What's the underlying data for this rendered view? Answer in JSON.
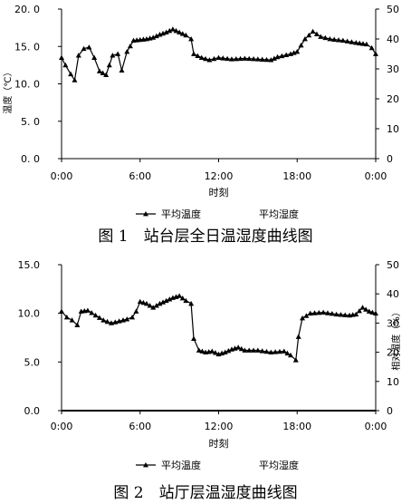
{
  "figures": [
    {
      "caption": "图 1　站台层全日温湿度曲线图"
    },
    {
      "caption": "图 2　站厅层温湿度曲线图"
    }
  ],
  "chart_data": [
    {
      "type": "line",
      "x_tick_labels": [
        "0:00",
        "6:00",
        "12:00",
        "18:00",
        "0:00"
      ],
      "xlabel": "时刻",
      "ylabel": "温度（℃）",
      "y_left_tick_labels": [
        "0. 0",
        "5. 0",
        "10. 0",
        "15. 0",
        "20. 0"
      ],
      "y_right_tick_labels": [
        "0",
        "10",
        "20",
        "30",
        "40",
        "50"
      ],
      "ylim_left": [
        0,
        20
      ],
      "ylim_right": [
        0,
        50
      ],
      "xlim_hours": [
        0,
        24
      ],
      "legend": [
        "平均温度",
        "平均湿度"
      ],
      "legend_position": "bottom",
      "grid": false,
      "series": [
        {
          "name": "平均温度",
          "marker": "triangle",
          "points": [
            [
              0.0,
              13.5
            ],
            [
              0.3,
              12.5
            ],
            [
              0.7,
              11.3
            ],
            [
              1.0,
              10.5
            ],
            [
              1.3,
              13.8
            ],
            [
              1.7,
              14.7
            ],
            [
              2.1,
              14.9
            ],
            [
              2.5,
              13.5
            ],
            [
              2.9,
              11.7
            ],
            [
              3.4,
              11.2
            ],
            [
              3.9,
              13.8
            ],
            [
              4.3,
              14.0
            ],
            [
              4.6,
              11.8
            ],
            [
              5.0,
              14.3
            ],
            [
              5.5,
              15.8
            ],
            [
              6.0,
              15.9
            ],
            [
              6.5,
              16.0
            ],
            [
              7.0,
              16.2
            ],
            [
              7.5,
              16.6
            ],
            [
              8.0,
              16.9
            ],
            [
              8.5,
              17.3
            ],
            [
              9.0,
              16.9
            ],
            [
              9.5,
              16.5
            ],
            [
              9.9,
              16.0
            ],
            [
              10.1,
              14.0
            ],
            [
              10.7,
              13.5
            ],
            [
              11.3,
              13.2
            ],
            [
              12.0,
              13.5
            ],
            [
              13.0,
              13.3
            ],
            [
              14.0,
              13.4
            ],
            [
              15.0,
              13.3
            ],
            [
              16.0,
              13.2
            ],
            [
              16.5,
              13.6
            ],
            [
              17.5,
              14.0
            ],
            [
              18.0,
              14.3
            ],
            [
              18.6,
              16.0
            ],
            [
              19.2,
              17.0
            ],
            [
              19.8,
              16.3
            ],
            [
              20.5,
              16.0
            ],
            [
              21.5,
              15.8
            ],
            [
              22.5,
              15.5
            ],
            [
              23.3,
              15.3
            ],
            [
              23.7,
              14.8
            ],
            [
              24.0,
              14.0
            ]
          ]
        },
        {
          "name": "平均湿度",
          "marker": "none",
          "points": []
        }
      ]
    },
    {
      "type": "line",
      "x_tick_labels": [
        "0:00",
        "6:00",
        "12:00",
        "18:00",
        "0:00"
      ],
      "xlabel": "时刻",
      "ylabel": "相对湿度（%）",
      "y_left_tick_labels": [
        "0.0",
        "5.0",
        "10.0",
        "15.0"
      ],
      "y_right_tick_labels": [
        "0",
        "10",
        "20",
        "30",
        "40",
        "50"
      ],
      "ylim_left": [
        0,
        15
      ],
      "ylim_right": [
        0,
        50
      ],
      "xlim_hours": [
        0,
        24
      ],
      "legend": [
        "平均温度",
        "平均湿度"
      ],
      "legend_position": "bottom",
      "grid": false,
      "series": [
        {
          "name": "平均温度",
          "marker": "triangle",
          "points": [
            [
              0.0,
              10.2
            ],
            [
              0.4,
              9.6
            ],
            [
              0.8,
              9.3
            ],
            [
              1.2,
              8.8
            ],
            [
              1.5,
              10.2
            ],
            [
              2.0,
              10.3
            ],
            [
              2.6,
              9.8
            ],
            [
              3.2,
              9.3
            ],
            [
              3.8,
              9.0
            ],
            [
              4.4,
              9.2
            ],
            [
              5.0,
              9.4
            ],
            [
              5.4,
              9.6
            ],
            [
              5.7,
              10.2
            ],
            [
              6.0,
              11.2
            ],
            [
              6.5,
              11.0
            ],
            [
              7.0,
              10.6
            ],
            [
              7.5,
              11.0
            ],
            [
              8.0,
              11.3
            ],
            [
              8.5,
              11.6
            ],
            [
              9.0,
              11.8
            ],
            [
              9.5,
              11.3
            ],
            [
              9.9,
              11.0
            ],
            [
              10.1,
              7.4
            ],
            [
              10.5,
              6.2
            ],
            [
              11.0,
              6.0
            ],
            [
              11.5,
              6.1
            ],
            [
              12.0,
              5.8
            ],
            [
              12.5,
              6.0
            ],
            [
              13.0,
              6.3
            ],
            [
              13.5,
              6.5
            ],
            [
              14.0,
              6.2
            ],
            [
              15.0,
              6.2
            ],
            [
              16.0,
              6.0
            ],
            [
              17.0,
              6.1
            ],
            [
              17.5,
              5.7
            ],
            [
              17.9,
              5.2
            ],
            [
              18.1,
              7.6
            ],
            [
              18.4,
              9.5
            ],
            [
              19.0,
              10.0
            ],
            [
              20.0,
              10.1
            ],
            [
              21.0,
              9.9
            ],
            [
              22.0,
              9.8
            ],
            [
              22.5,
              9.9
            ],
            [
              23.0,
              10.6
            ],
            [
              23.5,
              10.2
            ],
            [
              24.0,
              10.0
            ]
          ]
        },
        {
          "name": "平均湿度",
          "marker": "none",
          "points": []
        }
      ]
    }
  ]
}
